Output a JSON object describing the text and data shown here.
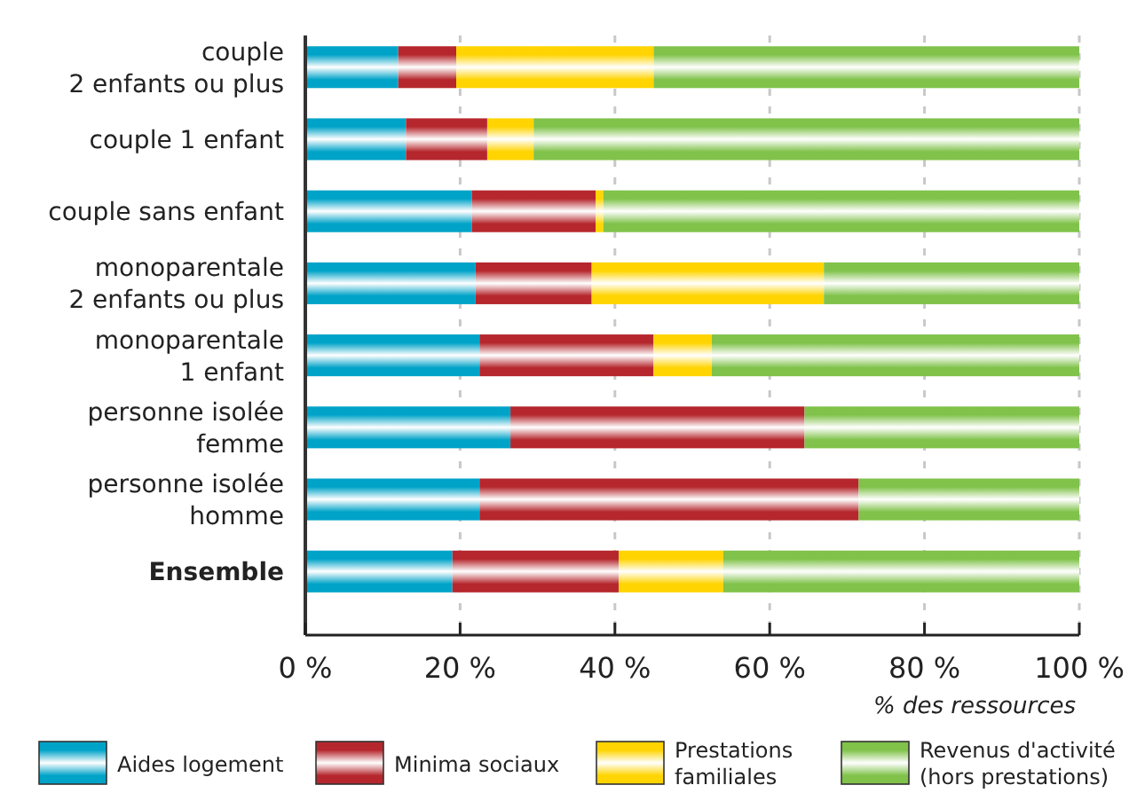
{
  "chart_data": {
    "type": "bar",
    "orientation": "horizontal",
    "stacked": true,
    "categories": [
      "couple\n2 enfants ou plus",
      "couple 1 enfant",
      "couple sans enfant",
      "monoparentale\n2 enfants ou plus",
      "monoparentale\n1 enfant",
      "personne isolée\nfemme",
      "personne isolée\nhomme",
      "Ensemble"
    ],
    "series": [
      {
        "name": "Aides logement",
        "color": "#00a3c8",
        "values": [
          12,
          13,
          21.5,
          22,
          22.5,
          26.5,
          22.5,
          19
        ]
      },
      {
        "name": "Minima sociaux",
        "color": "#b5272d",
        "values": [
          7.5,
          10.5,
          16,
          15,
          22.5,
          38,
          49,
          21.5
        ]
      },
      {
        "name": "Prestations\nfamiliales",
        "color": "#ffd400",
        "values": [
          25.5,
          6,
          1,
          30,
          7.5,
          0,
          0,
          13.5
        ]
      },
      {
        "name": "Revenus d'activité\n(hors prestations)",
        "color": "#80c24a",
        "values": [
          55,
          70.5,
          61.5,
          33,
          47.5,
          35.5,
          28.5,
          46
        ]
      }
    ],
    "xlabel": "% des ressources",
    "xlim": [
      0,
      100
    ],
    "xticks": [
      {
        "value": 0,
        "label": "0 %"
      },
      {
        "value": 20,
        "label": "20 %"
      },
      {
        "value": 40,
        "label": "40 %"
      },
      {
        "value": 60,
        "label": "60 %"
      },
      {
        "value": 80,
        "label": "80 %"
      },
      {
        "value": 100,
        "label": "100 %"
      }
    ],
    "grid": "x",
    "legend": "bottom"
  }
}
